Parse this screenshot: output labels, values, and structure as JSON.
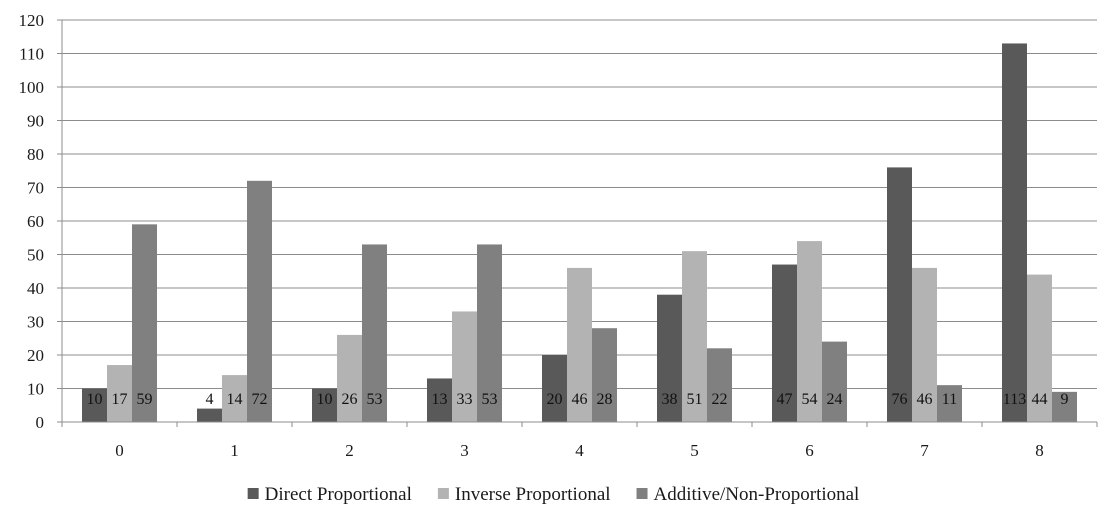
{
  "chart_data": {
    "type": "bar",
    "categories": [
      "0",
      "1",
      "2",
      "3",
      "4",
      "5",
      "6",
      "7",
      "8"
    ],
    "series": [
      {
        "name": "Direct Proportional",
        "color": "#595959",
        "values": [
          10,
          4,
          10,
          13,
          20,
          38,
          47,
          76,
          113
        ]
      },
      {
        "name": "Inverse Proportional",
        "color": "#b3b3b3",
        "values": [
          17,
          14,
          26,
          33,
          46,
          51,
          54,
          46,
          44
        ]
      },
      {
        "name": "Additive/Non-Proportional",
        "color": "#808080",
        "values": [
          59,
          72,
          53,
          53,
          28,
          22,
          24,
          11,
          9
        ]
      }
    ],
    "ylim": [
      0,
      120
    ],
    "yticks": [
      0,
      10,
      20,
      30,
      40,
      50,
      60,
      70,
      80,
      90,
      100,
      110,
      120
    ],
    "grid": true,
    "legend_position": "bottom",
    "data_labels": true
  }
}
